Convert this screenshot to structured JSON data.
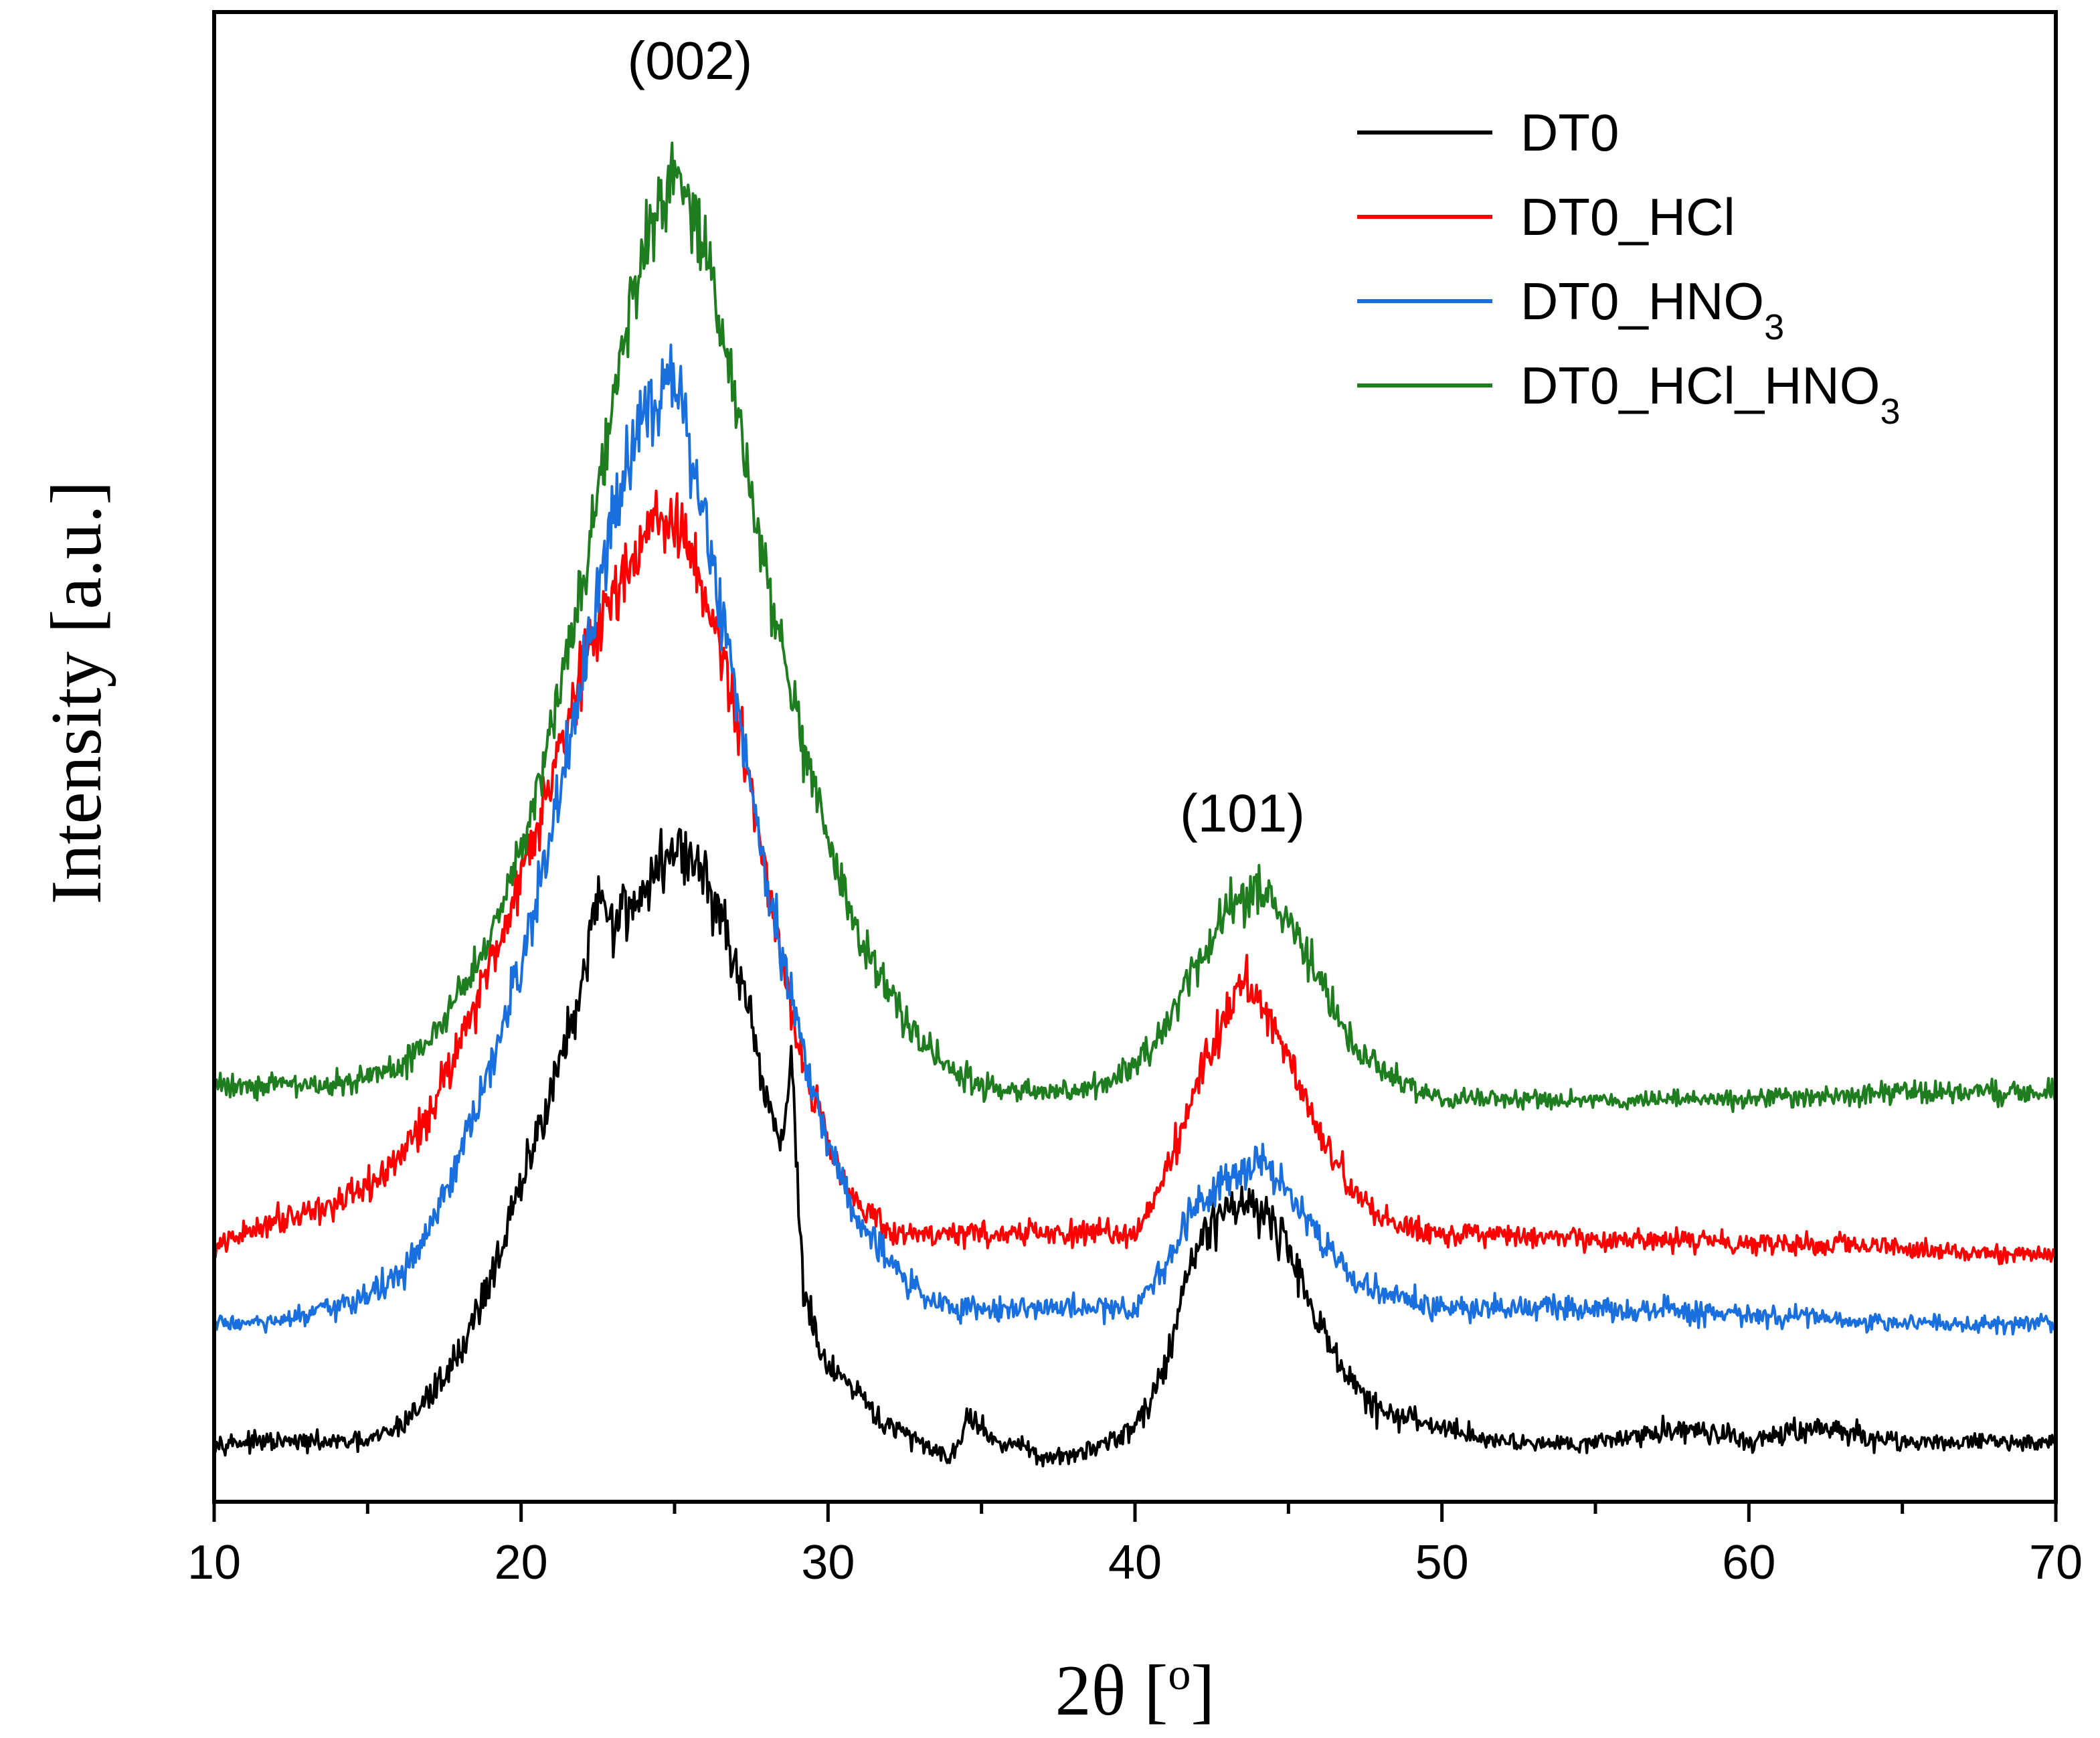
{
  "chart_data": {
    "type": "line",
    "title": "",
    "xlabel": "2θ [o]",
    "xlabel_parts": {
      "main": "2θ [",
      "sup": "o",
      "end": "]"
    },
    "ylabel": "Intensity [a.u.]",
    "xlim": [
      10,
      70
    ],
    "ylim": [
      0,
      100
    ],
    "x_ticks": [
      10,
      20,
      30,
      40,
      50,
      60,
      70
    ],
    "y_ticks_shown": false,
    "grid": false,
    "legend_position": "top-right",
    "annotations": [
      {
        "text": "(002)",
        "x": 25.5,
        "y": 95.5
      },
      {
        "text": "(101)",
        "x": 43.5,
        "y": 45
      }
    ],
    "series": [
      {
        "name": "DT0",
        "label_main": "DT0",
        "label_sub": "",
        "label_end": "",
        "color": "#000000",
        "noise": 1.0,
        "baseline_y": 4,
        "x": [
          10,
          12,
          14,
          15,
          16,
          17,
          18,
          19,
          20,
          21,
          22,
          22.5,
          23,
          24,
          25,
          26,
          27,
          28,
          28.5,
          28.8,
          29.2,
          29.6,
          30,
          31,
          32,
          33,
          34,
          34.7,
          35.3,
          36,
          37,
          38,
          39,
          40,
          41,
          41.5,
          42,
          43,
          44,
          45,
          46,
          47,
          48,
          50,
          52,
          55,
          58,
          60,
          62,
          65,
          68,
          70
        ],
        "y": [
          4,
          4,
          4,
          4,
          5,
          7,
          10,
          15,
          21,
          28,
          34,
          41,
          39,
          41,
          44,
          42,
          36,
          27,
          24,
          30,
          14,
          11,
          9,
          7,
          5,
          4,
          3,
          6,
          4,
          4,
          3,
          3,
          4,
          5,
          9,
          14,
          17,
          20,
          20,
          17,
          12,
          8,
          6,
          5,
          4,
          4,
          5,
          4,
          5,
          4,
          4,
          4
        ]
      },
      {
        "name": "DT0_HCl",
        "label_main": "DT0_HCl",
        "label_sub": "",
        "label_end": "",
        "color": "#ff0000",
        "noise": 1.0,
        "baseline_y": 17,
        "x": [
          10,
          12,
          14,
          15,
          16,
          17,
          18,
          19,
          20,
          21,
          22,
          23,
          24,
          25,
          26,
          27,
          28,
          29,
          30,
          31,
          32,
          34,
          36,
          38,
          40,
          41,
          42,
          43,
          43.5,
          44,
          45,
          46,
          47,
          48,
          50,
          55,
          60,
          65,
          70
        ],
        "y": [
          17,
          19,
          20,
          21,
          23,
          26,
          31,
          36,
          42,
          49,
          56,
          61,
          65,
          66,
          61,
          53,
          42,
          31,
          24,
          20,
          18,
          18,
          18,
          18,
          18,
          22,
          28,
          33,
          35,
          34,
          30,
          25,
          21,
          19,
          18,
          17.5,
          17.5,
          17,
          16.5
        ]
      },
      {
        "name": "DT0_HNO3",
        "label_main": "DT0_HNO",
        "label_sub": "3",
        "label_end": "",
        "color": "#1a6fdf",
        "noise": 1.0,
        "baseline_y": 12,
        "x": [
          10,
          12,
          14,
          16,
          17,
          18,
          19,
          20,
          21,
          22,
          23,
          24,
          25,
          26,
          27,
          28,
          29,
          30,
          31,
          32,
          33,
          34,
          36,
          38,
          40,
          41,
          42,
          43,
          44,
          45,
          46,
          47,
          48,
          50,
          55,
          60,
          65,
          70
        ],
        "y": [
          12,
          12,
          13,
          15,
          18,
          23,
          29,
          36,
          45,
          55,
          66,
          74,
          75,
          66,
          54,
          42,
          32,
          24,
          19,
          16,
          14,
          13,
          13,
          13,
          13,
          16,
          20,
          22,
          23,
          21,
          18,
          15,
          14,
          13,
          13,
          12.5,
          12,
          12
        ]
      },
      {
        "name": "DT0_HCl_HNO3",
        "label_main": "DT0_HCl_HNO",
        "label_sub": "3",
        "label_end": "",
        "color": "#1e7d1e",
        "noise": 1.0,
        "baseline_y": 27,
        "x": [
          10,
          12,
          14,
          16,
          17,
          18,
          19,
          20,
          21,
          22,
          23,
          24,
          25,
          26,
          27,
          28,
          29,
          30,
          31,
          32,
          33,
          34,
          35,
          36,
          37,
          38,
          39,
          40,
          41,
          42,
          43,
          44,
          45,
          46,
          47,
          48,
          50,
          55,
          60,
          65,
          70
        ],
        "y": [
          28,
          28,
          28,
          29,
          31,
          34,
          38,
          44,
          52,
          62,
          74,
          84,
          89,
          84,
          74,
          62,
          52,
          44,
          38,
          34,
          31,
          29,
          28,
          27.5,
          27.5,
          27.5,
          28,
          29,
          32,
          36,
          40,
          41,
          39,
          35,
          31,
          29,
          27,
          27,
          27,
          27.5,
          27.5
        ]
      }
    ]
  }
}
